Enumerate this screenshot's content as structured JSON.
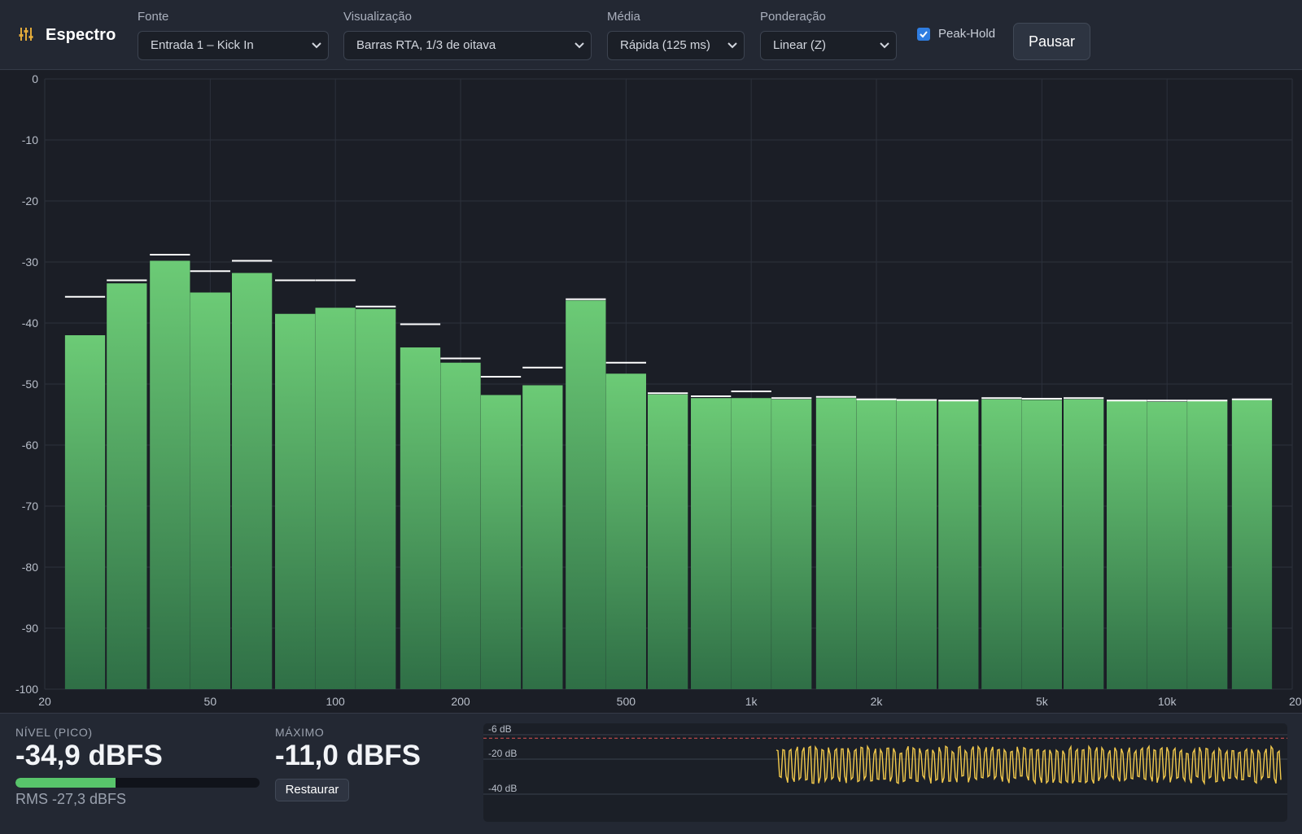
{
  "app": {
    "title": "Espectro",
    "icon": "sliders-icon"
  },
  "toolbar": {
    "source": {
      "label": "Fonte",
      "value": "Entrada 1 – Kick In"
    },
    "view": {
      "label": "Visualização",
      "value": "Barras RTA, 1/3 de oitava"
    },
    "average": {
      "label": "Média",
      "value": "Rápida (125 ms)"
    },
    "weighting": {
      "label": "Ponderação",
      "value": "Linear (Z)"
    },
    "peak_hold": {
      "label": "Peak-Hold",
      "checked": true
    },
    "pause_label": "Pausar"
  },
  "chart_data": {
    "type": "bar",
    "title": "",
    "xlabel": "",
    "ylabel": "",
    "x_scale": "log",
    "x_range": [
      20,
      20000
    ],
    "ylim": [
      -100,
      0
    ],
    "grid": true,
    "y_ticks": [
      "0",
      "-10",
      "-20",
      "-30",
      "-40",
      "-50",
      "-60",
      "-70",
      "-80",
      "-90",
      "-100"
    ],
    "x_ticks": [
      {
        "value": 20,
        "label": "20"
      },
      {
        "value": 50,
        "label": "50"
      },
      {
        "value": 100,
        "label": "100"
      },
      {
        "value": 200,
        "label": "200"
      },
      {
        "value": 500,
        "label": "500"
      },
      {
        "value": 1000,
        "label": "1k"
      },
      {
        "value": 2000,
        "label": "2k"
      },
      {
        "value": 5000,
        "label": "5k"
      },
      {
        "value": 10000,
        "label": "10k"
      },
      {
        "value": 20000,
        "label": "20k"
      }
    ],
    "bands_hz": [
      25,
      31.5,
      40,
      50,
      63,
      80,
      100,
      125,
      160,
      200,
      250,
      315,
      400,
      500,
      630,
      800,
      1000,
      1250,
      1600,
      2000,
      2500,
      3150,
      4000,
      5000,
      6300,
      8000,
      10000,
      12500,
      16000
    ],
    "series": [
      {
        "name": "",
        "values": [
          -42.0,
          -33.5,
          -29.8,
          -35.0,
          -31.8,
          -38.5,
          -37.5,
          -37.7,
          -44.0,
          -46.5,
          -51.8,
          -50.2,
          -36.3,
          -48.3,
          -51.7,
          -52.3,
          -52.3,
          -52.5,
          -52.3,
          -52.6,
          -52.7,
          -52.8,
          -52.5,
          -52.6,
          -52.5,
          -52.8,
          -52.9,
          -52.8,
          -52.6
        ]
      },
      {
        "name": "",
        "values": [
          -35.7,
          -33.0,
          -28.8,
          -31.5,
          -29.8,
          -33.0,
          -33.0,
          -37.3,
          -40.2,
          -45.8,
          -48.8,
          -47.3,
          -36.1,
          -46.5,
          -51.5,
          -52.0,
          -51.2,
          -52.3,
          -52.1,
          -52.5,
          -52.6,
          -52.7,
          -52.3,
          -52.4,
          -52.3,
          -52.7,
          -52.7,
          -52.7,
          -52.5
        ]
      }
    ]
  },
  "meters": {
    "level": {
      "label": "NÍVEL (PICO)",
      "value": "-34,9 dBFS",
      "fill_fraction": 0.41,
      "rms": "RMS -27,3 dBFS"
    },
    "max": {
      "label": "MÁXIMO",
      "value": "-11,0 dBFS",
      "reset_label": "Restaurar"
    },
    "history": {
      "labels": [
        "-6 dB",
        "-20 dB",
        "-40 dB"
      ],
      "scale_db": [
        -6,
        -20,
        -40
      ],
      "threshold_db": -8,
      "line_color": "#f2c94c",
      "threshold_color": "#e05252"
    }
  },
  "colors": {
    "bar_top": "#69c872",
    "bar_bottom": "#2e6d45",
    "peak_marker": "#ffffff",
    "grid": "#2c313c",
    "background": "#1b1e26"
  }
}
